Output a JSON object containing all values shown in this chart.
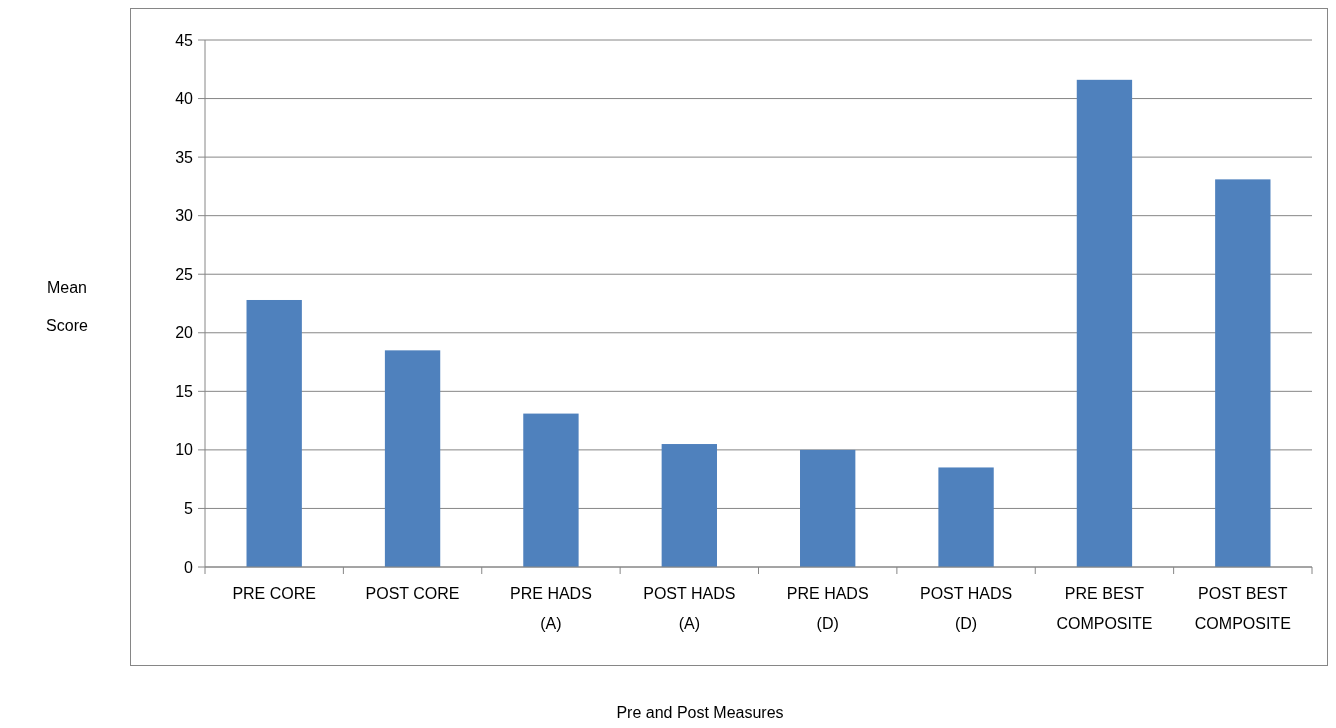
{
  "chart_data": {
    "type": "bar",
    "xlabel": "Pre and Post Measures",
    "ylabel": "Mean Score",
    "categories": [
      "PRE CORE",
      "POST CORE",
      "PRE HADS (A)",
      "POST HADS (A)",
      "PRE HADS (D)",
      "POST HADS (D)",
      "PRE BEST COMPOSITE",
      "POST BEST COMPOSITE"
    ],
    "values": [
      22.8,
      18.5,
      13.1,
      10.5,
      10.0,
      8.5,
      41.6,
      33.1
    ],
    "color": "#4f81bd",
    "ylim": [
      0,
      45
    ],
    "yticks": [
      0,
      5,
      10,
      15,
      20,
      25,
      30,
      35,
      40,
      45
    ],
    "grid": "y"
  }
}
